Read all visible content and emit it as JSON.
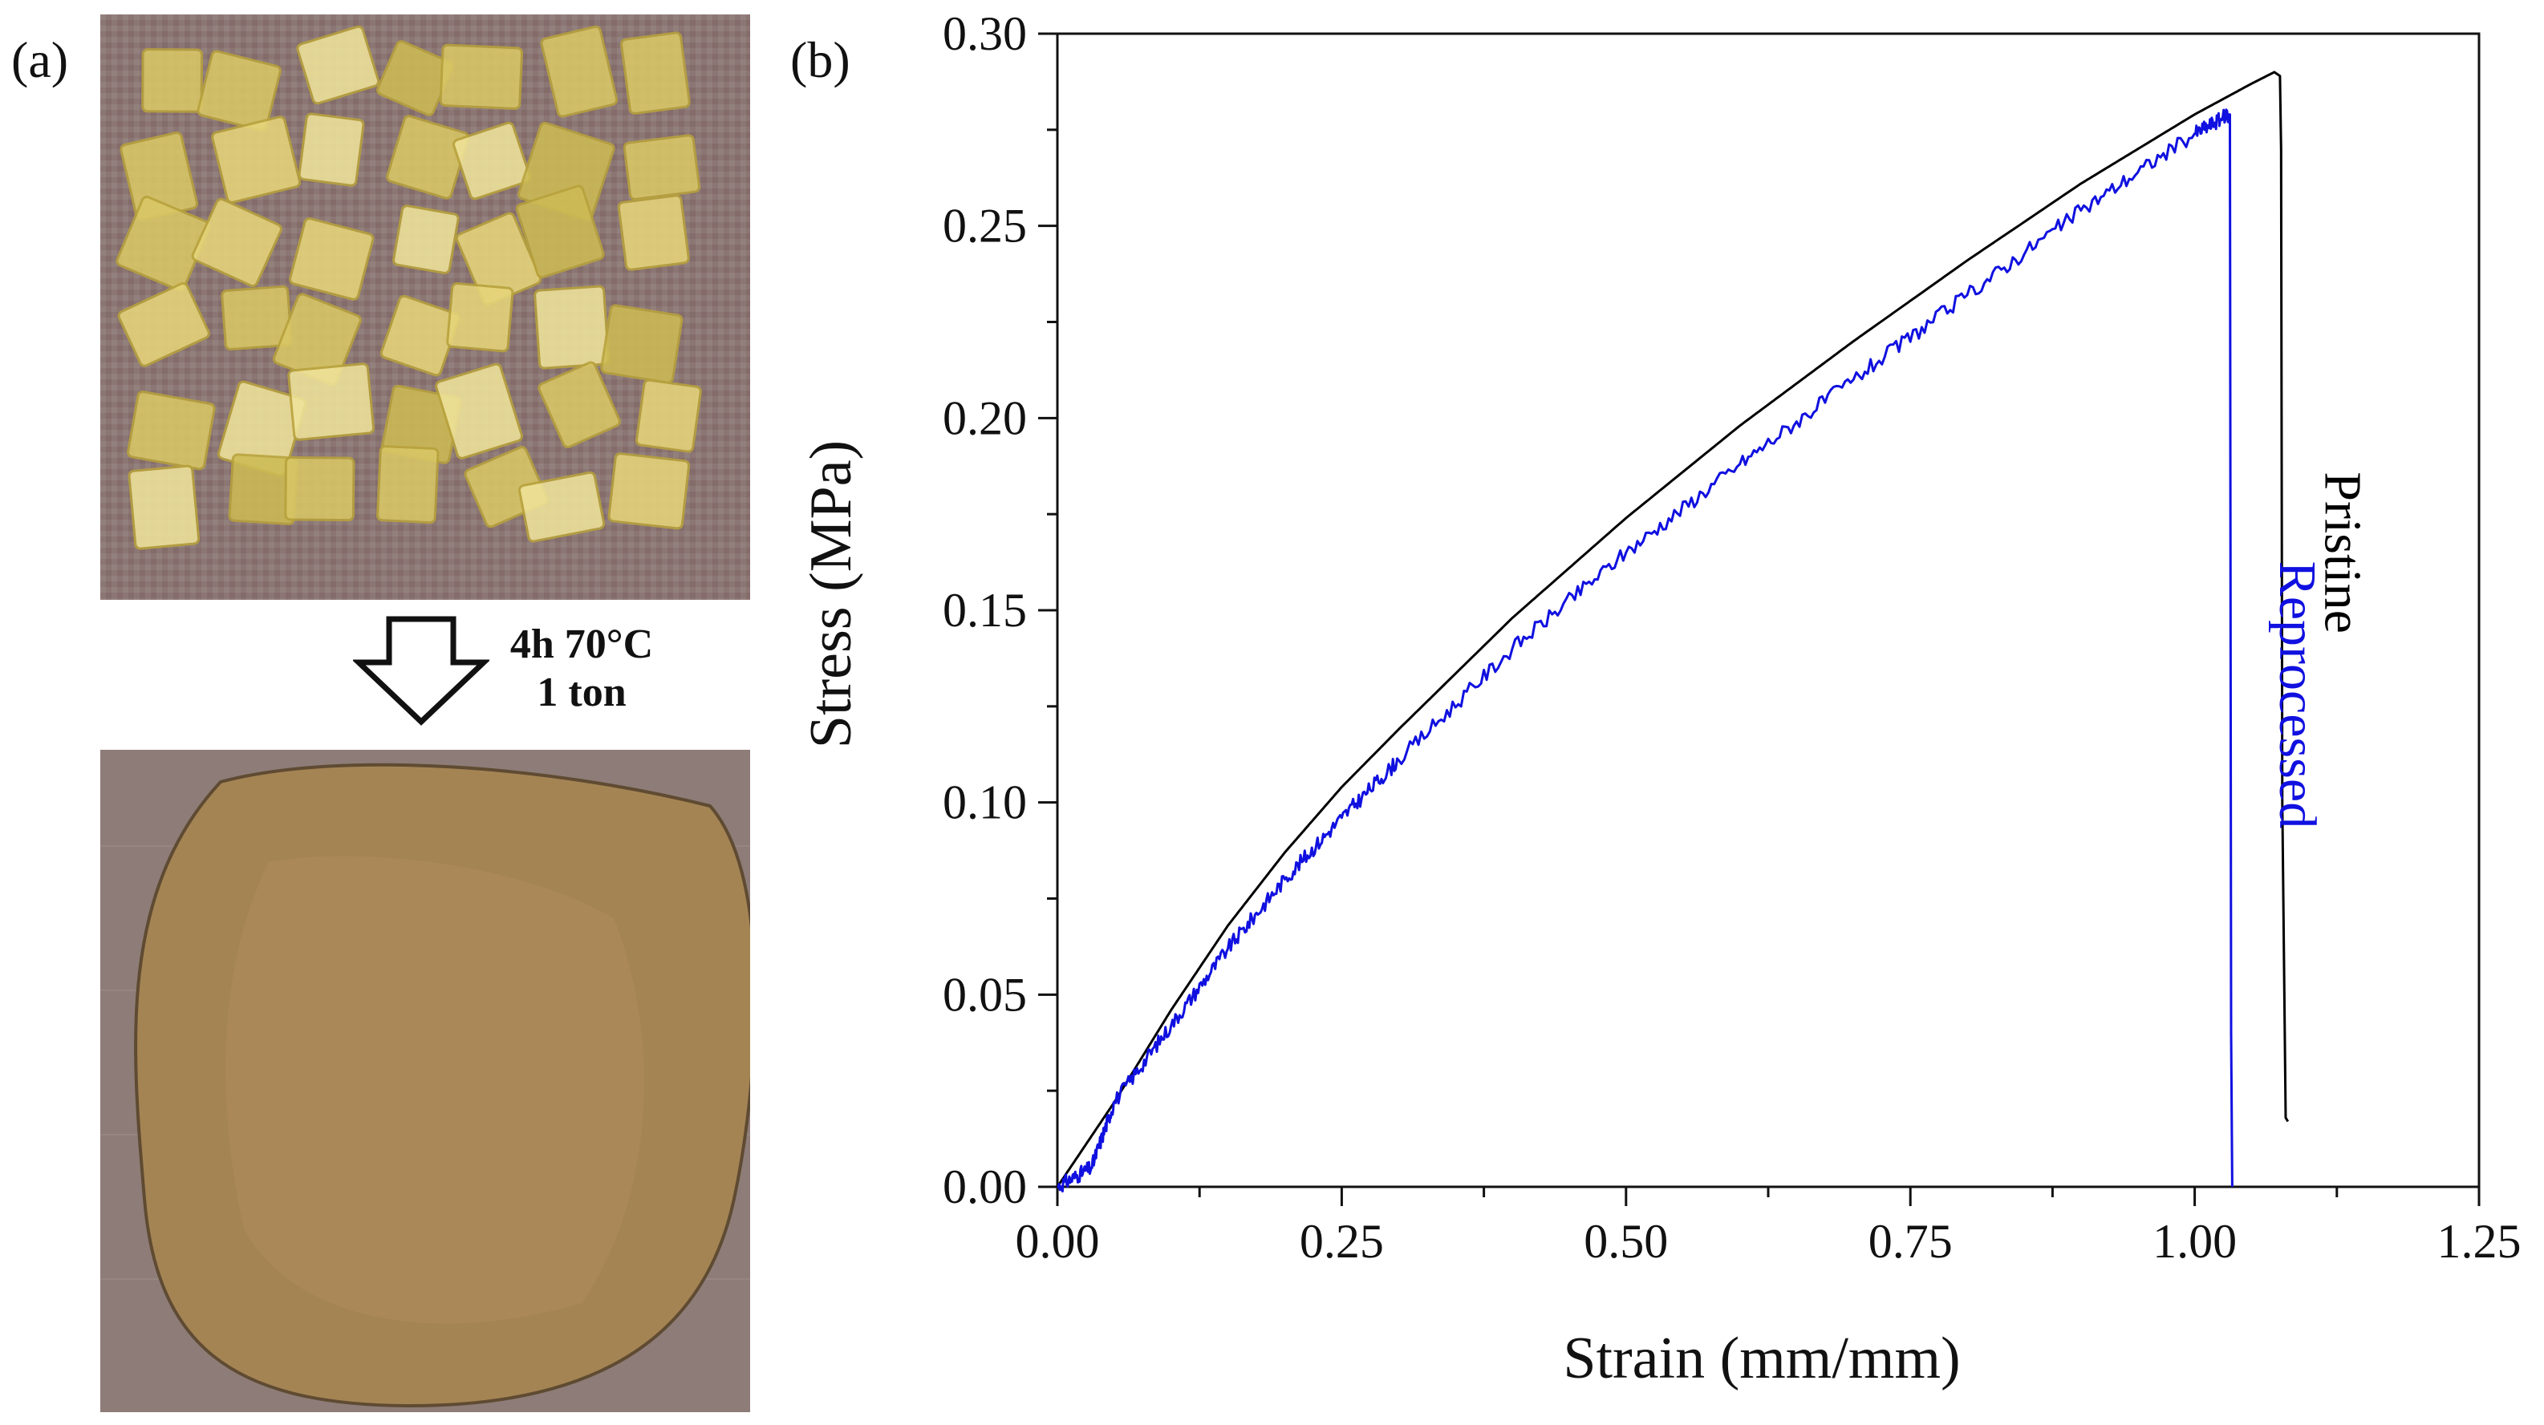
{
  "panel_a": {
    "label": "(a)",
    "process_line1": "4h 70°C",
    "process_line2": "1 ton",
    "top_photo": "pieces of yellow transparent polymer cut into small squares on a brown fabric",
    "bottom_photo": "a single round pressed sheet of amber polymer on brown fabric",
    "colors": {
      "fabric": "#8a7472",
      "sheet": "#a9875a",
      "piece": "#e0d27a"
    }
  },
  "panel_b": {
    "label": "(b)"
  },
  "chart_data": {
    "type": "line",
    "title": "",
    "xlabel": "Strain (mm/mm)",
    "ylabel": "Stress (MPa)",
    "xlim": [
      0.0,
      1.25
    ],
    "ylim": [
      0.0,
      0.3
    ],
    "x_ticks": [
      "0.00",
      "0.25",
      "0.50",
      "0.75",
      "1.00",
      "1.25"
    ],
    "y_ticks": [
      "0.00",
      "0.05",
      "0.10",
      "0.15",
      "0.20",
      "0.25",
      "0.30"
    ],
    "grid": false,
    "series": [
      {
        "name": "Pristine",
        "color": "#000000",
        "noisy": false,
        "x": [
          0.0,
          0.05,
          0.1,
          0.15,
          0.2,
          0.25,
          0.3,
          0.4,
          0.5,
          0.6,
          0.7,
          0.8,
          0.9,
          1.0,
          1.05,
          1.07,
          1.075,
          1.076,
          1.077,
          1.08,
          1.082
        ],
        "y": [
          0.0,
          0.022,
          0.046,
          0.068,
          0.087,
          0.104,
          0.119,
          0.148,
          0.174,
          0.198,
          0.22,
          0.241,
          0.261,
          0.279,
          0.287,
          0.29,
          0.289,
          0.27,
          0.1,
          0.018,
          0.017
        ]
      },
      {
        "name": "Reprocessed",
        "color": "#1010e0",
        "noisy": true,
        "x": [
          0.0,
          0.03,
          0.05,
          0.1,
          0.15,
          0.2,
          0.25,
          0.3,
          0.4,
          0.5,
          0.6,
          0.7,
          0.8,
          0.9,
          1.0,
          1.03,
          1.031,
          1.032,
          1.033
        ],
        "y": [
          0.0,
          0.005,
          0.022,
          0.042,
          0.062,
          0.08,
          0.096,
          0.111,
          0.14,
          0.165,
          0.188,
          0.21,
          0.232,
          0.254,
          0.274,
          0.279,
          0.279,
          0.04,
          0.0
        ]
      }
    ],
    "annotations": [
      {
        "text": "Pristine",
        "at_x": 1.115,
        "at_y": 0.165,
        "rotation": 90,
        "color": "#000000"
      },
      {
        "text": "Reprocessed",
        "at_x": 1.075,
        "at_y": 0.128,
        "rotation": 90,
        "color": "#1010e0"
      }
    ]
  }
}
